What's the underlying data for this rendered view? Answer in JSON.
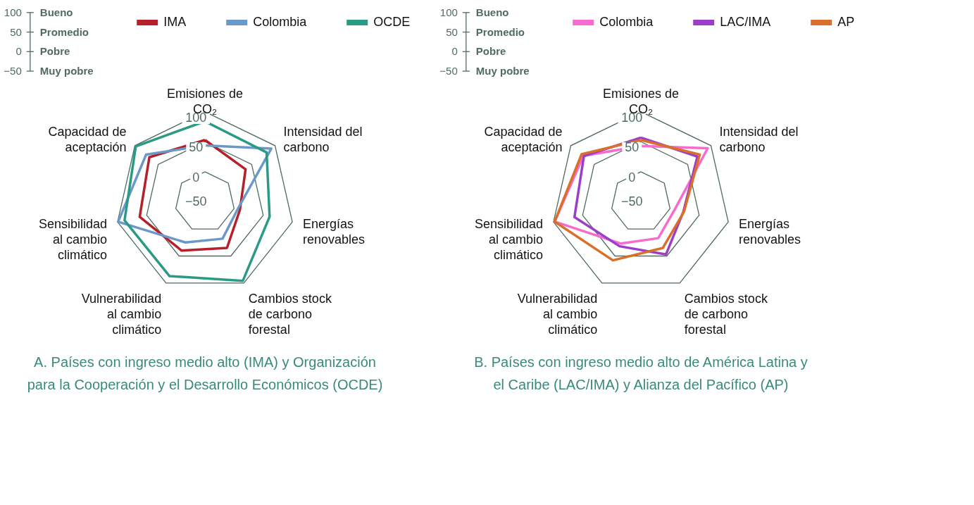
{
  "chart_data": [
    {
      "type": "radar",
      "title": "A. Países con ingreso medio alto (IMA) y Organización para la Cooperación y el Desarrollo Económicos (OCDE)",
      "categories": [
        "Emisiones de CO₂",
        "Intensidad del carbono",
        "Energías renovables",
        "Cambios stock de carbono forestal",
        "Vulnerabilidad al cambio climático",
        "Sensibilidad al cambio climático",
        "Capacidad de aceptación"
      ],
      "series": [
        {
          "name": "IMA",
          "color": "#b5202a",
          "values": [
            53,
            37,
            10,
            35,
            40,
            62,
            69
          ]
        },
        {
          "name": "Colombia",
          "color": "#6a98c8",
          "values": [
            44,
            92,
            6,
            18,
            25,
            99,
            76
          ]
        },
        {
          "name": "OCDE",
          "color": "#2a9a85",
          "values": [
            84,
            82,
            61,
            96,
            87,
            88,
            98
          ]
        }
      ],
      "ylim": [
        -50,
        100
      ],
      "yticks": [
        -50,
        0,
        50,
        100
      ],
      "grid": true,
      "legend": "top",
      "annotations": [
        "100",
        "Bueno",
        "50",
        "Promedio",
        "0",
        "Pobre",
        "−50",
        "Muy pobre"
      ]
    },
    {
      "type": "radar",
      "title": "B. Países con ingreso medio alto de América Latina y el Caribe (LAC/IMA) y Alianza del Pacífico (AP)",
      "categories": [
        "Emisiones de CO₂",
        "Intensidad del carbono",
        "Energías renovables",
        "Cambios stock de carbono forestal",
        "Vulnerabilidad al cambio climático",
        "Sensibilidad al cambio climático",
        "Capacidad de aceptación"
      ],
      "series": [
        {
          "name": "Colombia",
          "color": "#f76bd0",
          "values": [
            43,
            93,
            8,
            17,
            27,
            98,
            73
          ]
        },
        {
          "name": "LAC/IMA",
          "color": "#9b3ec9",
          "values": [
            57,
            71,
            23,
            47,
            32,
            64,
            72
          ]
        },
        {
          "name": "AP",
          "color": "#d8702a",
          "values": [
            53,
            76,
            24,
            35,
            58,
            98,
            77
          ]
        }
      ],
      "ylim": [
        -50,
        100
      ],
      "yticks": [
        -50,
        0,
        50,
        100
      ],
      "grid": true,
      "legend": "top",
      "annotations": [
        "100",
        "Bueno",
        "50",
        "Promedio",
        "0",
        "Pobre",
        "−50",
        "Muy pobre"
      ]
    }
  ]
}
